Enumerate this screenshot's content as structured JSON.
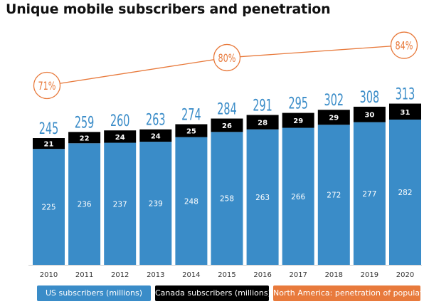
{
  "chart_data": {
    "type": "bar",
    "stacked": true,
    "title": "Unique mobile subscribers and penetration",
    "categories": [
      "2010",
      "2011",
      "2012",
      "2013",
      "2014",
      "2015",
      "2016",
      "2017",
      "2018",
      "2019",
      "2020"
    ],
    "series": [
      {
        "name": "US subscribers (millions)",
        "color": "#3a8cc8",
        "values": [
          225,
          236,
          237,
          239,
          248,
          258,
          263,
          266,
          272,
          277,
          282
        ]
      },
      {
        "name": "Canada subscribers (millions)",
        "color": "#000000",
        "values": [
          21,
          22,
          24,
          24,
          25,
          26,
          28,
          29,
          29,
          30,
          31
        ]
      }
    ],
    "totals": [
      245,
      259,
      260,
      263,
      274,
      284,
      291,
      295,
      302,
      308,
      313
    ],
    "penetration": {
      "name": "North America: penetration of population",
      "color": "#e87a3c",
      "points": [
        {
          "x": "2010",
          "label": "71%",
          "value": 71
        },
        {
          "x": "2015",
          "label": "80%",
          "value": 80
        },
        {
          "x": "2020",
          "label": "84%",
          "value": 84
        }
      ]
    },
    "grid": false
  }
}
